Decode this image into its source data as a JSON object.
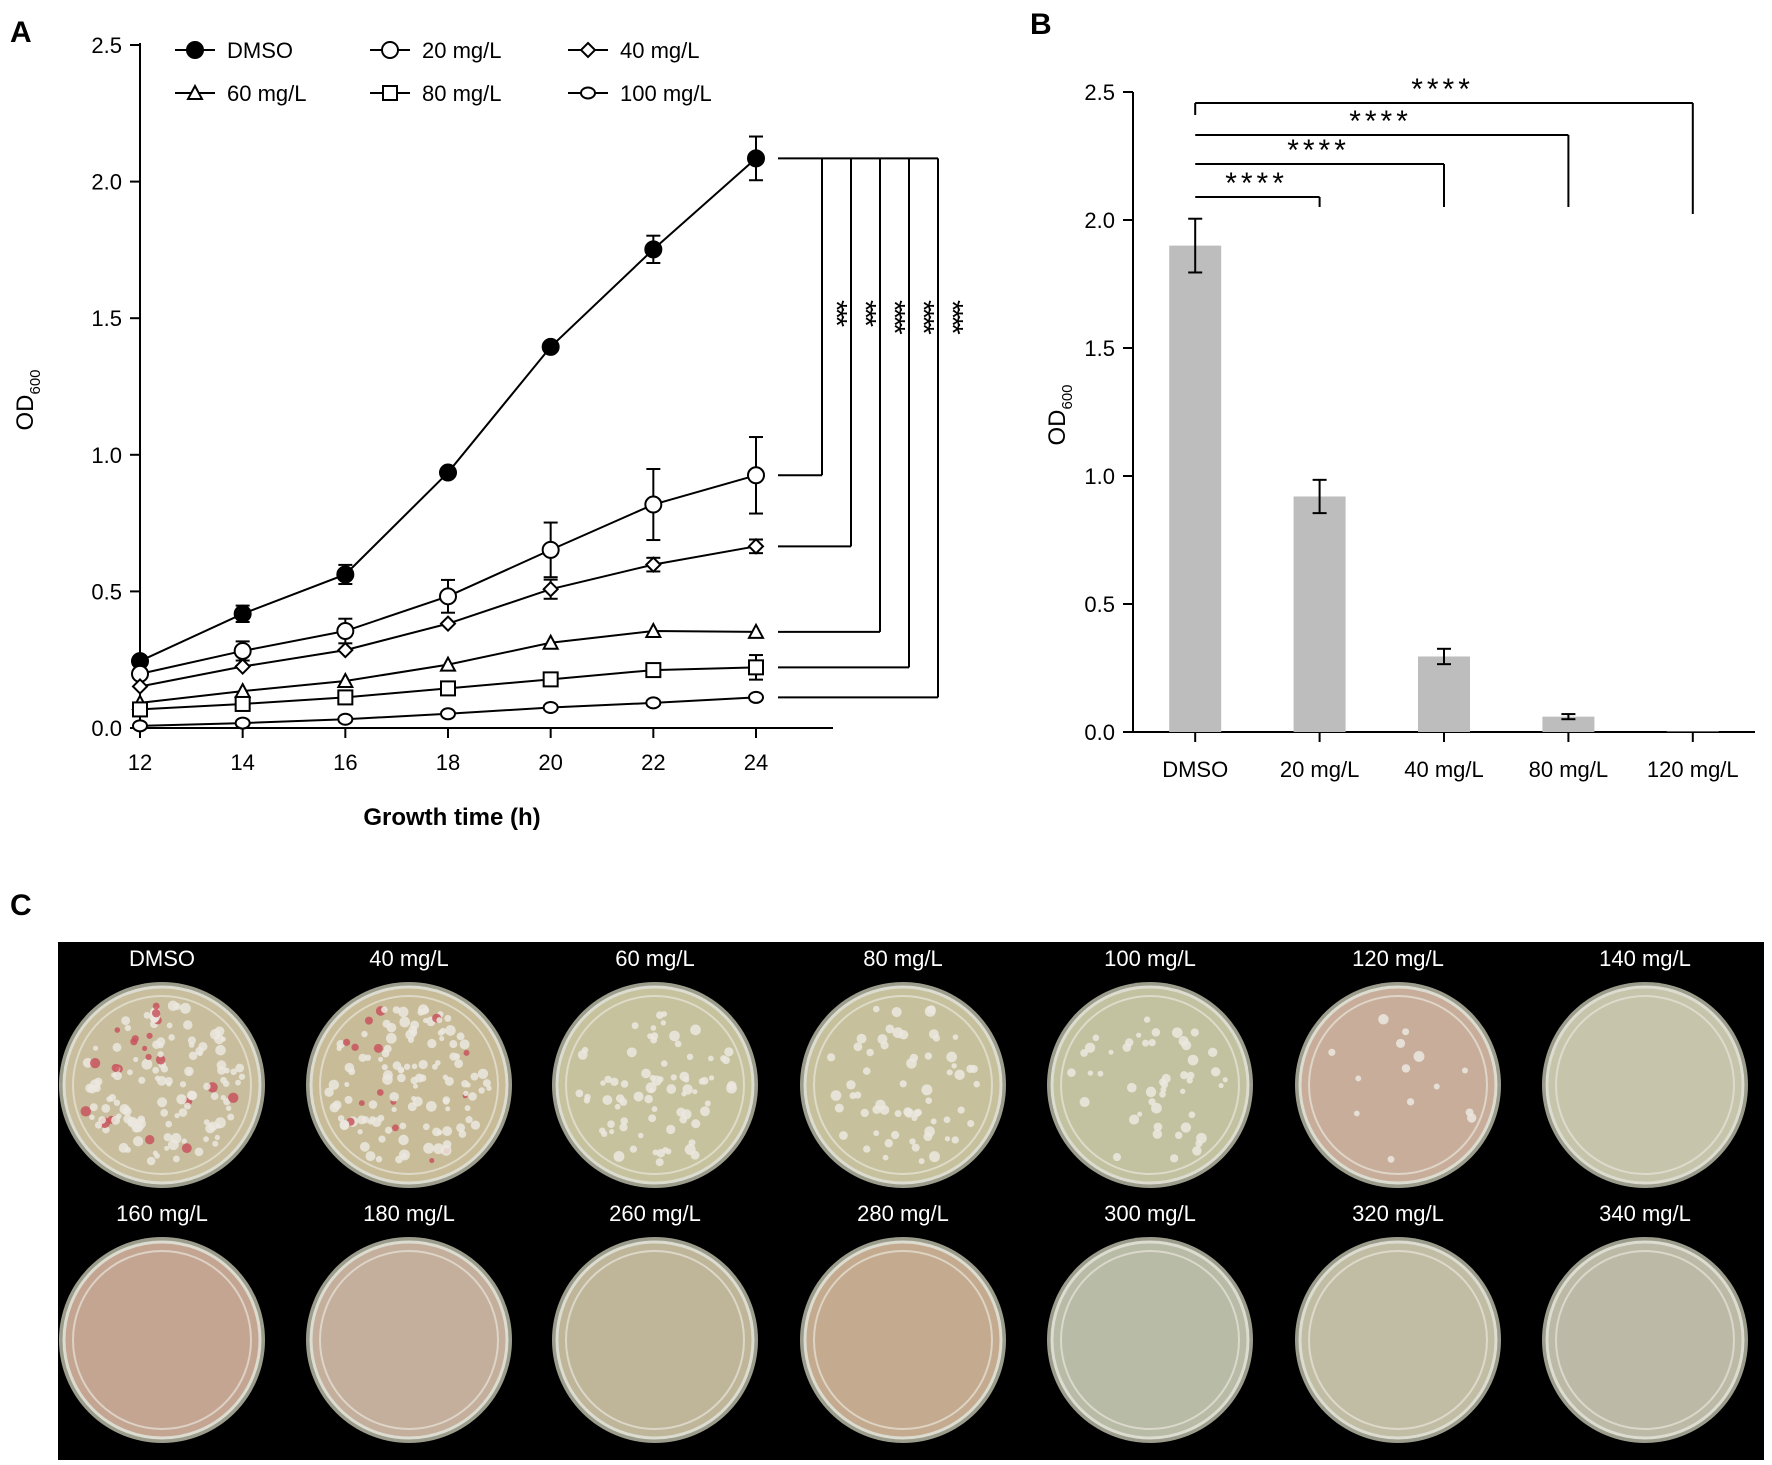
{
  "panel_labels": {
    "a": "A",
    "b": "B",
    "c": "C"
  },
  "chart_data": [
    {
      "type": "line",
      "panel": "A",
      "xlabel": "Growth time (h)",
      "ylabel": "OD",
      "ylabel_sub": "600",
      "x": [
        12,
        14,
        16,
        18,
        20,
        22,
        24
      ],
      "xlim": [
        12,
        25.5
      ],
      "ylim": [
        0,
        2.5
      ],
      "xticks": [
        "12",
        "14",
        "16",
        "18",
        "20",
        "22",
        "24"
      ],
      "yticks": [
        "0.0",
        "0.5",
        "1.0",
        "1.5",
        "2.0",
        "2.5"
      ],
      "grid": false,
      "legend_position": "top",
      "series": [
        {
          "name": "DMSO",
          "marker": "filled-circle",
          "values": [
            0.245,
            0.418,
            0.562,
            0.935,
            1.395,
            1.752,
            2.085
          ],
          "errors": [
            0.0,
            0.03,
            0.035,
            0.0,
            0.0,
            0.05,
            0.08
          ]
        },
        {
          "name": "20 mg/L",
          "marker": "open-circle",
          "values": [
            0.198,
            0.282,
            0.355,
            0.482,
            0.652,
            0.818,
            0.925
          ],
          "errors": [
            0.0,
            0.035,
            0.045,
            0.06,
            0.1,
            0.13,
            0.14
          ]
        },
        {
          "name": "40 mg/L",
          "marker": "diamond",
          "values": [
            0.152,
            0.225,
            0.285,
            0.382,
            0.508,
            0.598,
            0.665
          ],
          "errors": [
            0.0,
            0.0,
            0.0,
            0.0,
            0.035,
            0.025,
            0.025
          ]
        },
        {
          "name": "60 mg/L",
          "marker": "triangle",
          "values": [
            0.092,
            0.135,
            0.172,
            0.232,
            0.312,
            0.355,
            0.352
          ],
          "errors": [
            0,
            0,
            0,
            0,
            0,
            0,
            0
          ]
        },
        {
          "name": "80 mg/L",
          "marker": "square",
          "values": [
            0.068,
            0.088,
            0.112,
            0.145,
            0.178,
            0.212,
            0.222
          ],
          "errors": [
            0,
            0,
            0,
            0,
            0,
            0,
            0.045
          ]
        },
        {
          "name": "100 mg/L",
          "marker": "open-hexagon",
          "values": [
            0.008,
            0.018,
            0.032,
            0.052,
            0.075,
            0.092,
            0.112
          ],
          "errors": [
            0,
            0,
            0,
            0,
            0,
            0,
            0
          ]
        }
      ],
      "significance": [
        "***",
        "***",
        "****",
        "****",
        "****"
      ]
    },
    {
      "type": "bar",
      "panel": "B",
      "ylabel": "OD",
      "ylabel_sub": "600",
      "categories": [
        "DMSO",
        "20 mg/L",
        "40 mg/L",
        "80 mg/L",
        "120 mg/L"
      ],
      "values": [
        1.9,
        0.92,
        0.295,
        0.06,
        0.002
      ],
      "errors": [
        0.105,
        0.065,
        0.03,
        0.01,
        0.0
      ],
      "ylim": [
        0,
        2.5
      ],
      "yticks": [
        "0.0",
        "0.5",
        "1.0",
        "1.5",
        "2.0",
        "2.5"
      ],
      "grid": false,
      "bar_color": "#bdbdbd",
      "significance": [
        "****",
        "****",
        "****",
        "****"
      ]
    }
  ],
  "plates": {
    "row1": [
      {
        "label": "DMSO",
        "colonies": 1.0,
        "tint": "#c8bd9c"
      },
      {
        "label": "40 mg/L",
        "colonies": 0.95,
        "tint": "#c8bb97"
      },
      {
        "label": "60 mg/L",
        "colonies": 0.55,
        "tint": "#c6c29e"
      },
      {
        "label": "80 mg/L",
        "colonies": 0.45,
        "tint": "#c6c19c"
      },
      {
        "label": "100 mg/L",
        "colonies": 0.35,
        "tint": "#c3c2a0"
      },
      {
        "label": "120 mg/L",
        "colonies": 0.1,
        "tint": "#c8ae9a"
      },
      {
        "label": "140 mg/L",
        "colonies": 0.0,
        "tint": "#c6c4aa"
      }
    ],
    "row2": [
      {
        "label": "160 mg/L",
        "colonies": 0.0,
        "tint": "#c4a592"
      },
      {
        "label": "180 mg/L",
        "colonies": 0.0,
        "tint": "#c4ae9c"
      },
      {
        "label": "260 mg/L",
        "colonies": 0.0,
        "tint": "#bfb69a"
      },
      {
        "label": "280 mg/L",
        "colonies": 0.0,
        "tint": "#c4aa8e"
      },
      {
        "label": "300 mg/L",
        "colonies": 0.0,
        "tint": "#b8bba6"
      },
      {
        "label": "320 mg/L",
        "colonies": 0.0,
        "tint": "#c1bda4"
      },
      {
        "label": "340 mg/L",
        "colonies": 0.0,
        "tint": "#bcbaa6"
      }
    ]
  }
}
